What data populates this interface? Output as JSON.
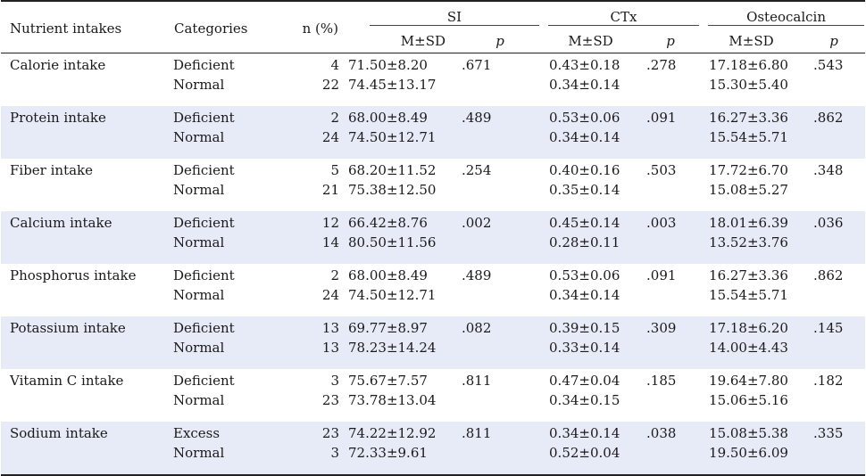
{
  "headers": {
    "nutrient": "Nutrient intakes",
    "categories": "Categories",
    "n": "n (%)",
    "si": "SI",
    "ctx": "CTx",
    "osteocalcin": "Osteocalcin",
    "msd": "M±SD",
    "p": "p"
  },
  "rows": [
    {
      "nutrient": "Calorie intake",
      "cat1": "Deficient",
      "cat2": "Normal",
      "n1": "4",
      "n2": "22",
      "si1": "71.50±8.20",
      "si2": "74.45±13.17",
      "si_p": ".671",
      "ctx1": "0.43±0.18",
      "ctx2": "0.34±0.14",
      "ctx_p": ".278",
      "os1": "17.18±6.80",
      "os2": "15.30±5.40",
      "os_p": ".543"
    },
    {
      "nutrient": "Protein intake",
      "cat1": "Deficient",
      "cat2": "Normal",
      "n1": "2",
      "n2": "24",
      "si1": "68.00±8.49",
      "si2": "74.50±12.71",
      "si_p": ".489",
      "ctx1": "0.53±0.06",
      "ctx2": "0.34±0.14",
      "ctx_p": ".091",
      "os1": "16.27±3.36",
      "os2": "15.54±5.71",
      "os_p": ".862"
    },
    {
      "nutrient": "Fiber intake",
      "cat1": "Deficient",
      "cat2": "Normal",
      "n1": "5",
      "n2": "21",
      "si1": "68.20±11.52",
      "si2": "75.38±12.50",
      "si_p": ".254",
      "ctx1": "0.40±0.16",
      "ctx2": "0.35±0.14",
      "ctx_p": ".503",
      "os1": "17.72±6.70",
      "os2": "15.08±5.27",
      "os_p": ".348"
    },
    {
      "nutrient": "Calcium intake",
      "cat1": "Deficient",
      "cat2": "Normal",
      "n1": "12",
      "n2": "14",
      "si1": "66.42±8.76",
      "si2": "80.50±11.56",
      "si_p": ".002",
      "ctx1": "0.45±0.14",
      "ctx2": "0.28±0.11",
      "ctx_p": ".003",
      "os1": "18.01±6.39",
      "os2": "13.52±3.76",
      "os_p": ".036"
    },
    {
      "nutrient": "Phosphorus intake",
      "cat1": "Deficient",
      "cat2": "Normal",
      "n1": "2",
      "n2": "24",
      "si1": "68.00±8.49",
      "si2": "74.50±12.71",
      "si_p": ".489",
      "ctx1": "0.53±0.06",
      "ctx2": "0.34±0.14",
      "ctx_p": ".091",
      "os1": "16.27±3.36",
      "os2": "15.54±5.71",
      "os_p": ".862"
    },
    {
      "nutrient": "Potassium intake",
      "cat1": "Deficient",
      "cat2": "Normal",
      "n1": "13",
      "n2": "13",
      "si1": "69.77±8.97",
      "si2": "78.23±14.24",
      "si_p": ".082",
      "ctx1": "0.39±0.15",
      "ctx2": "0.33±0.14",
      "ctx_p": ".309",
      "os1": "17.18±6.20",
      "os2": "14.00±4.43",
      "os_p": ".145"
    },
    {
      "nutrient": "Vitamin C intake",
      "cat1": "Deficient",
      "cat2": "Normal",
      "n1": "3",
      "n2": "23",
      "si1": "75.67±7.57",
      "si2": "73.78±13.04",
      "si_p": ".811",
      "ctx1": "0.47±0.04",
      "ctx2": "0.34±0.15",
      "ctx_p": ".185",
      "os1": "19.64±7.80",
      "os2": "15.06±5.16",
      "os_p": ".182"
    },
    {
      "nutrient": "Sodium intake",
      "cat1": "Excess",
      "cat2": "Normal",
      "n1": "23",
      "n2": "3",
      "si1": "74.22±12.92",
      "si2": "72.33±9.61",
      "si_p": ".811",
      "ctx1": "0.34±0.14",
      "ctx2": "0.52±0.04",
      "ctx_p": ".038",
      "os1": "15.08±5.38",
      "os2": "19.50±6.09",
      "os_p": ".335"
    }
  ],
  "colors": {
    "shade": "#e6ebf7",
    "rule": "#222222"
  }
}
